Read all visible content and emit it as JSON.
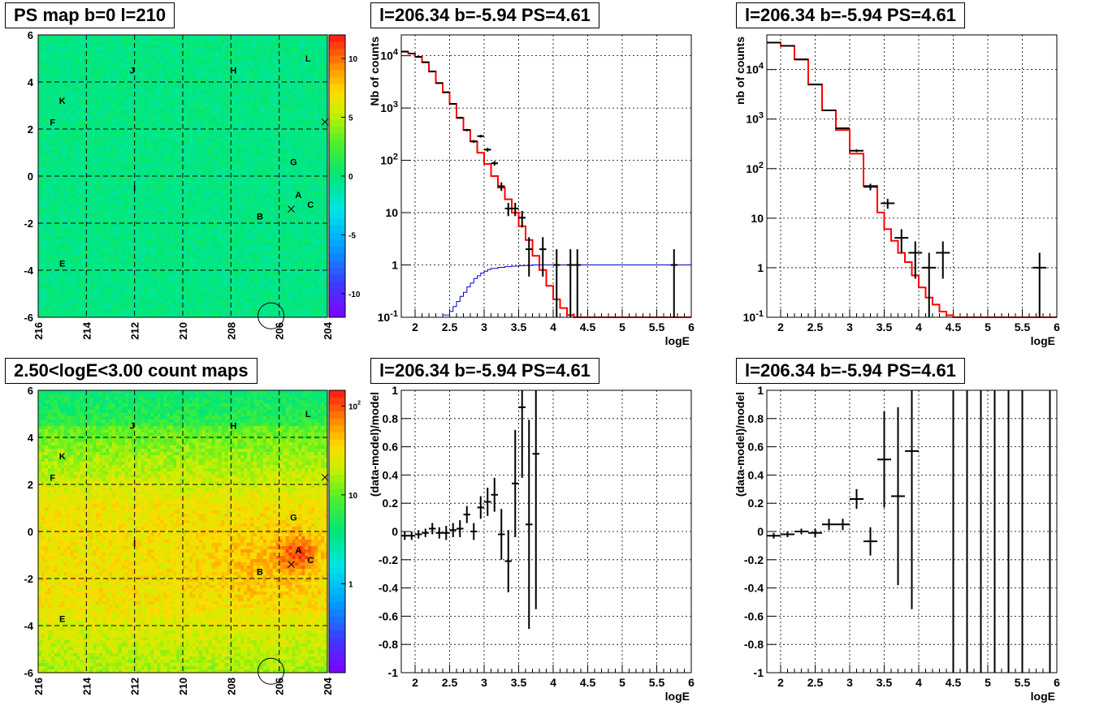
{
  "titles": {
    "ps_map": "PS map b=0 l=210",
    "count_map": "2.50<logE<3.00 count maps",
    "spec_full": "l=206.34 b=-5.94 PS=4.61",
    "spec_rebin": "l=206.34 b=-5.94 PS=4.61",
    "resid_full": "l=206.34 b=-5.94 PS=4.61",
    "resid_rebin": "l=206.34 b=-5.94 PS=4.61"
  },
  "colors": {
    "model": "#ff0000",
    "efficiency": "#0000cc",
    "data": "#000000",
    "grid": "#000000"
  },
  "chart_data": [
    {
      "id": "ps_map",
      "type": "heatmap",
      "title": "PS map b=0 l=210",
      "x_ticks": [
        "216",
        "214",
        "212",
        "210",
        "208",
        "206",
        "204"
      ],
      "xlim": [
        216,
        204
      ],
      "y_ticks": [
        "6",
        "4",
        "2",
        "0",
        "-2",
        "-4",
        "-6"
      ],
      "ylim": [
        -6,
        6
      ],
      "colorbar": {
        "scale": "linear",
        "range": [
          -12,
          12
        ],
        "ticks": [
          "10",
          "5",
          "0",
          "-5",
          "-10"
        ]
      },
      "grid": true,
      "background_level": "near 0 (green)",
      "source_labels": [
        {
          "name": "J",
          "l": 212.1,
          "b": 4.5
        },
        {
          "name": "H",
          "l": 207.9,
          "b": 4.5
        },
        {
          "name": "L",
          "l": 204.8,
          "b": 5.0
        },
        {
          "name": "K",
          "l": 215.0,
          "b": 3.2
        },
        {
          "name": "F",
          "l": 215.4,
          "b": 2.3
        },
        {
          "name": "G",
          "l": 205.4,
          "b": 0.6
        },
        {
          "name": "I",
          "l": 212.0,
          "b": -0.5
        },
        {
          "name": "A",
          "l": 205.2,
          "b": -0.8
        },
        {
          "name": "C",
          "l": 204.7,
          "b": -1.2
        },
        {
          "name": "B",
          "l": 206.8,
          "b": -1.7
        },
        {
          "name": "E",
          "l": 215.0,
          "b": -3.7
        }
      ],
      "markers": [
        {
          "type": "x",
          "l": 205.5,
          "b": -1.4
        },
        {
          "type": "x",
          "l": 204.1,
          "b": 2.3
        },
        {
          "type": "circle",
          "l": 206.34,
          "b": -5.94
        }
      ]
    },
    {
      "id": "count_map",
      "type": "heatmap",
      "title": "2.50<logE<3.00 count maps",
      "x_ticks": [
        "216",
        "214",
        "212",
        "210",
        "208",
        "206",
        "204"
      ],
      "xlim": [
        216,
        204
      ],
      "y_ticks": [
        "6",
        "4",
        "2",
        "0",
        "-2",
        "-4",
        "-6"
      ],
      "ylim": [
        -6,
        6
      ],
      "colorbar": {
        "scale": "log",
        "range": [
          0.1,
          150
        ],
        "ticks": [
          "10^2",
          "10",
          "1"
        ]
      },
      "grid": true,
      "hotspot": {
        "l": 205.2,
        "b": -0.9
      }
    },
    {
      "id": "spec_full",
      "type": "line",
      "title": "l=206.34 b=-5.94 PS=4.61",
      "xlabel": "logE",
      "ylabel": "Nb of counts",
      "xlim": [
        1.8,
        6
      ],
      "ylim": [
        0.1,
        25000
      ],
      "yscale": "log",
      "x_ticks": [
        "2",
        "2.5",
        "3",
        "3.5",
        "4",
        "4.5",
        "5",
        "5.5",
        "6"
      ],
      "y_ticks": [
        "10^4",
        "10^3",
        "10^2",
        "10",
        "1",
        "10^-1"
      ],
      "grid": true,
      "series": [
        {
          "style": "step",
          "color": "#ff0000",
          "edges": [
            1.8,
            1.9,
            2.0,
            2.1,
            2.2,
            2.3,
            2.4,
            2.5,
            2.6,
            2.7,
            2.8,
            2.9,
            3.0,
            3.1,
            3.2,
            3.3,
            3.4,
            3.5,
            3.6,
            3.7,
            3.8,
            3.9,
            4.0,
            4.1,
            4.2,
            4.3,
            4.4,
            6.0
          ],
          "values": [
            12000,
            11000,
            9500,
            7500,
            5000,
            3000,
            2000,
            1200,
            650,
            380,
            230,
            140,
            85,
            50,
            30,
            18,
            10,
            5.5,
            3.0,
            1.5,
            0.8,
            0.4,
            0.22,
            0.15,
            0.11,
            0.1,
            0.1
          ]
        },
        {
          "style": "step",
          "color": "#0000cc",
          "edges": [
            1.8,
            2.4,
            2.5,
            2.55,
            2.6,
            2.65,
            2.7,
            2.75,
            2.8,
            2.85,
            2.9,
            2.95,
            3.0,
            3.05,
            3.1,
            3.2,
            3.3,
            3.4,
            3.5,
            3.6,
            3.7,
            6.0
          ],
          "values": [
            0.1,
            0.11,
            0.13,
            0.16,
            0.2,
            0.25,
            0.3,
            0.38,
            0.45,
            0.55,
            0.62,
            0.7,
            0.76,
            0.82,
            0.86,
            0.9,
            0.93,
            0.95,
            0.97,
            0.98,
            1.0
          ]
        },
        {
          "style": "points",
          "color": "#000000",
          "x": [
            1.85,
            1.95,
            2.05,
            2.15,
            2.25,
            2.35,
            2.45,
            2.55,
            2.65,
            2.75,
            2.85,
            2.95,
            3.05,
            3.15,
            3.25,
            3.35,
            3.45,
            3.55,
            3.65,
            3.85,
            4.05,
            4.25,
            4.35,
            5.75
          ],
          "y": [
            12000,
            11000,
            9500,
            7500,
            5000,
            3000,
            2000,
            1200,
            650,
            380,
            230,
            290,
            160,
            88,
            32,
            12,
            12,
            8,
            2,
            2,
            1,
            1,
            1,
            1
          ],
          "yerr_lo": [
            110,
            105,
            97,
            87,
            71,
            55,
            45,
            35,
            25,
            19,
            15,
            17,
            13,
            9,
            6,
            3.4,
            3.4,
            2.8,
            1.4,
            1.4,
            0.95,
            0.95,
            0.95,
            0.95
          ],
          "yerr_hi": [
            110,
            105,
            97,
            87,
            71,
            55,
            45,
            35,
            25,
            19,
            15,
            17,
            13,
            9,
            6,
            3.4,
            3.4,
            2.8,
            1.4,
            1.4,
            1.0,
            1.0,
            1.0,
            1.0
          ],
          "xerr": 0.05
        }
      ]
    },
    {
      "id": "spec_rebin",
      "type": "line",
      "title": "l=206.34 b=-5.94 PS=4.61",
      "xlabel": "logE",
      "ylabel": "nb of counts",
      "xlim": [
        1.8,
        6
      ],
      "ylim": [
        0.1,
        50000
      ],
      "yscale": "log",
      "x_ticks": [
        "2",
        "2.5",
        "3",
        "3.5",
        "4",
        "4.5",
        "5",
        "5.5",
        "6"
      ],
      "y_ticks": [
        "10^4",
        "10^3",
        "10^2",
        "10",
        "1",
        "10^-1"
      ],
      "grid": true,
      "series": [
        {
          "style": "step",
          "color": "#ff0000",
          "edges": [
            1.8,
            2.0,
            2.2,
            2.4,
            2.6,
            2.8,
            3.0,
            3.2,
            3.4,
            3.5,
            3.6,
            3.7,
            3.8,
            3.9,
            4.0,
            4.1,
            4.2,
            4.3,
            4.4,
            4.5,
            6.0
          ],
          "values": [
            35000,
            30000,
            16000,
            5000,
            1500,
            600,
            200,
            45,
            13,
            6,
            3.5,
            2,
            1.3,
            0.7,
            0.4,
            0.25,
            0.18,
            0.13,
            0.11,
            0.1
          ]
        },
        {
          "style": "points",
          "color": "#000000",
          "x": [
            1.9,
            2.1,
            2.3,
            2.5,
            2.7,
            2.9,
            3.1,
            3.3,
            3.55,
            3.75,
            3.95,
            4.15,
            4.35,
            5.75
          ],
          "y": [
            35000,
            30000,
            16000,
            5000,
            1500,
            650,
            230,
            43,
            20,
            4,
            2,
            1,
            2,
            1
          ],
          "yerr_lo": [
            190,
            175,
            125,
            70,
            39,
            25,
            15,
            6.5,
            4.5,
            2,
            1.4,
            0.95,
            1.4,
            0.95
          ],
          "yerr_hi": [
            190,
            175,
            125,
            70,
            39,
            25,
            15,
            6.5,
            4.5,
            2,
            1.4,
            1.0,
            1.4,
            1.0
          ],
          "xerr": 0.1
        }
      ]
    },
    {
      "id": "resid_full",
      "type": "scatter",
      "title": "l=206.34 b=-5.94 PS=4.61",
      "xlabel": "logE",
      "ylabel": "(data-model)/model",
      "xlim": [
        1.8,
        6
      ],
      "ylim": [
        -1,
        1
      ],
      "x_ticks": [
        "2",
        "2.5",
        "3",
        "3.5",
        "4",
        "4.5",
        "5",
        "5.5",
        "6"
      ],
      "y_ticks": [
        "1",
        "0.8",
        "0.6",
        "0.4",
        "0.2",
        "0",
        "-0.2",
        "-0.4",
        "-0.6",
        "-0.8",
        "-1"
      ],
      "grid": true,
      "series": [
        {
          "style": "points",
          "color": "#000000",
          "x": [
            1.85,
            1.95,
            2.05,
            2.15,
            2.25,
            2.35,
            2.45,
            2.55,
            2.65,
            2.75,
            2.85,
            2.95,
            3.05,
            3.15,
            3.25,
            3.35,
            3.45,
            3.55,
            3.65,
            3.75
          ],
          "y": [
            -0.03,
            -0.03,
            -0.02,
            -0.01,
            0.02,
            -0.01,
            -0.01,
            0.01,
            0.02,
            0.12,
            0.0,
            0.17,
            0.21,
            0.26,
            -0.02,
            -0.21,
            0.34,
            0.88,
            0.05,
            0.55
          ],
          "yerr": [
            0.03,
            0.03,
            0.03,
            0.03,
            0.04,
            0.04,
            0.05,
            0.05,
            0.06,
            0.06,
            0.06,
            0.08,
            0.1,
            0.12,
            0.18,
            0.22,
            0.38,
            0.5,
            0.74,
            1.1
          ],
          "xerr": 0.05
        }
      ]
    },
    {
      "id": "resid_rebin",
      "type": "scatter",
      "title": "l=206.34 b=-5.94 PS=4.61",
      "xlabel": "logE",
      "ylabel": "(data-model)/model",
      "xlim": [
        1.8,
        6
      ],
      "ylim": [
        -1,
        1
      ],
      "x_ticks": [
        "2",
        "2.5",
        "3",
        "3.5",
        "4",
        "4.5",
        "5",
        "5.5",
        "6"
      ],
      "y_ticks": [
        "1",
        "0.8",
        "0.6",
        "0.4",
        "0.2",
        "0",
        "-0.2",
        "-0.4",
        "-0.6",
        "-0.8",
        "-1"
      ],
      "grid": true,
      "series": [
        {
          "style": "points",
          "color": "#000000",
          "x": [
            1.9,
            2.1,
            2.3,
            2.5,
            2.7,
            2.9,
            3.1,
            3.3,
            3.5,
            3.7,
            3.9
          ],
          "y": [
            -0.03,
            -0.02,
            0.0,
            -0.01,
            0.05,
            0.05,
            0.23,
            -0.07,
            0.51,
            0.25,
            0.57
          ],
          "yerr": [
            0.02,
            0.02,
            0.02,
            0.03,
            0.04,
            0.04,
            0.07,
            0.1,
            0.34,
            0.63,
            1.12
          ],
          "xerr": 0.1
        },
        {
          "style": "vlines",
          "color": "#000000",
          "x": [
            4.5,
            4.7,
            4.9,
            5.1,
            5.3,
            5.5,
            5.9
          ]
        }
      ]
    }
  ]
}
